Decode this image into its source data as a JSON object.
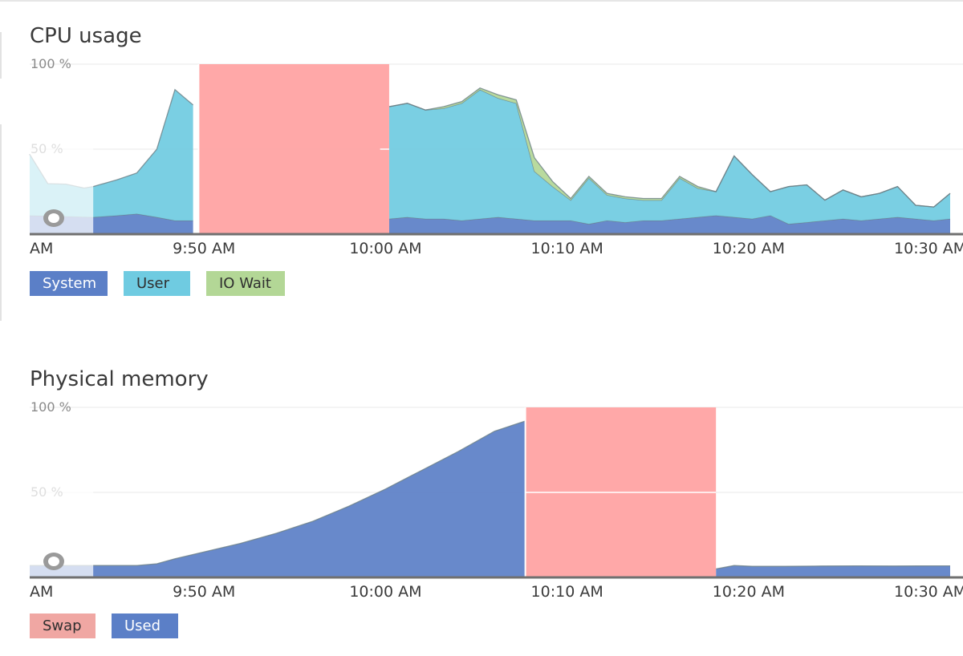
{
  "chart_data": [
    {
      "type": "area",
      "title": "CPU usage",
      "ylim": [
        0,
        100
      ],
      "y_ticks": [
        "100 %",
        "50 %"
      ],
      "y_tick_values": [
        100,
        50
      ],
      "x_ticks": [
        "AM",
        "9:50 AM",
        "10:00 AM",
        "10:10 AM",
        "10:20 AM",
        "10:30 AM"
      ],
      "x_tick_minutes": [
        -3.3,
        0,
        10,
        20,
        30,
        40
      ],
      "x_range_minutes": [
        -9.6,
        41.1
      ],
      "x_start_time": "9:40 AM",
      "stacked": true,
      "gap": {
        "from": -0.3,
        "to": 10.2,
        "color": "#ffa3a3"
      },
      "gap_line": {
        "from": 9.7,
        "to": 10.2
      },
      "selection": {
        "from": -9.6,
        "to": -6.1
      },
      "series": [
        {
          "name": "System",
          "color": "#5b7fc7",
          "x": [
            -9.6,
            -6.1,
            -4.8,
            -3.7,
            -2.6,
            -1.6,
            -0.6,
            0.4,
            1.3,
            2.3,
            3.3,
            4.3,
            5.3,
            6.3,
            7.3,
            8.3,
            9.3,
            10.2,
            11.2,
            12.2,
            13.2,
            14.2,
            15.2,
            16.2,
            17.2,
            18.2,
            19.2,
            20.2,
            21.2,
            22.2,
            23.2,
            24.2,
            25.2,
            26.2,
            27.2,
            28.2,
            29.2,
            30.2,
            31.2,
            32.2,
            33.2,
            34.2,
            35.2,
            36.2,
            37.2,
            38.2,
            39.2,
            40.2,
            41.1
          ],
          "values": [
            11,
            10,
            11,
            12,
            10,
            8,
            8,
            8,
            8,
            9,
            8,
            8,
            9,
            10,
            9,
            8,
            7,
            9,
            10,
            9,
            9,
            8,
            9,
            10,
            9,
            8,
            8,
            8,
            6,
            8,
            7,
            8,
            8,
            9,
            10,
            11,
            10,
            9,
            11,
            6,
            7,
            8,
            9,
            8,
            9,
            10,
            9,
            8,
            9
          ]
        },
        {
          "name": "User",
          "color": "#6fcbe1",
          "x": [
            -9.6,
            -8.6,
            -7.6,
            -6.6,
            -6.1,
            -4.8,
            -3.7,
            -2.6,
            -1.6,
            -0.6,
            0.4,
            1.3,
            2.3,
            3.3,
            4.3,
            5.3,
            6.3,
            7.3,
            8.3,
            9.3,
            10.2,
            11.2,
            12.2,
            13.2,
            14.2,
            15.2,
            16.2,
            17.2,
            18.2,
            19.2,
            20.2,
            21.2,
            22.2,
            23.2,
            24.2,
            25.2,
            26.2,
            27.2,
            28.2,
            29.2,
            30.2,
            31.2,
            32.2,
            33.2,
            34.2,
            35.2,
            36.2,
            37.2,
            38.2,
            39.2,
            40.2,
            41.1
          ],
          "values": [
            36,
            19,
            19,
            17,
            18,
            21,
            24,
            40,
            77,
            68,
            69,
            69,
            69,
            73,
            69,
            74,
            72,
            70,
            67,
            63,
            66,
            67,
            64,
            65,
            69,
            76,
            70,
            68,
            29,
            20,
            12,
            27,
            15,
            14,
            12,
            12,
            24,
            17,
            14,
            36,
            26,
            14,
            22,
            22,
            12,
            17,
            14,
            15,
            18,
            8,
            8,
            15
          ]
        },
        {
          "name": "IO Wait",
          "color": "#b3d796",
          "x": [
            -9.6,
            -8.6,
            -7.6,
            -6.6,
            -6.1,
            -4.8,
            -3.7,
            -2.6,
            -1.6,
            -0.6,
            0.4,
            1.3,
            2.3,
            3.3,
            4.3,
            5.3,
            6.3,
            7.3,
            8.3,
            9.3,
            10.2,
            11.2,
            12.2,
            13.2,
            14.2,
            15.2,
            16.2,
            17.2,
            18.2,
            19.2,
            20.2,
            21.2,
            22.2,
            23.2,
            24.2,
            25.2,
            26.2,
            27.2,
            28.2,
            29.2,
            30.2,
            31.2,
            32.2,
            33.2,
            34.2,
            35.2,
            36.2,
            37.2,
            38.2,
            39.2,
            40.2,
            41.1
          ],
          "values": [
            0,
            0,
            0,
            0,
            0,
            0,
            0,
            0,
            0,
            0,
            0,
            0,
            0,
            0,
            0,
            0,
            0,
            0,
            0,
            0,
            0,
            0,
            0,
            1,
            1,
            1,
            2,
            2,
            8,
            3,
            1,
            1,
            1,
            1,
            1,
            1,
            1,
            1,
            0,
            0,
            0,
            0,
            0,
            0,
            0,
            0,
            0,
            0,
            0,
            0,
            0,
            0
          ]
        }
      ]
    },
    {
      "type": "area",
      "title": "Physical memory",
      "ylim": [
        0,
        100
      ],
      "y_ticks": [
        "100 %",
        "50 %"
      ],
      "y_tick_values": [
        100,
        50
      ],
      "x_ticks": [
        "AM",
        "9:50 AM",
        "10:00 AM",
        "10:10 AM",
        "10:20 AM",
        "10:30 AM"
      ],
      "x_tick_minutes": [
        -3.3,
        0,
        10,
        20,
        30,
        40
      ],
      "x_range_minutes": [
        -9.6,
        41.1
      ],
      "x_start_time": "9:40 AM",
      "stacked": true,
      "gap": {
        "from": 17.7,
        "to": 28.2,
        "color": "#ffa3a3"
      },
      "gap_line": {
        "from": 17.7,
        "to": 28.2
      },
      "selection": {
        "from": -9.6,
        "to": -6.1
      },
      "series": [
        {
          "name": "Swap",
          "color": "#f0a7a3",
          "x": [
            -9.6,
            41.1
          ],
          "values": [
            0,
            0
          ]
        },
        {
          "name": "Used",
          "color": "#5b7fc7",
          "x": [
            -9.6,
            -6.1,
            -4.8,
            -3.7,
            -2.6,
            -1.6,
            0,
            2,
            4,
            6,
            8,
            10,
            12,
            14,
            16,
            17.7,
            28.2,
            29.2,
            30.2,
            32,
            34,
            36,
            38,
            40,
            41.1
          ],
          "values": [
            7,
            7,
            7,
            7,
            8,
            11,
            15,
            20,
            26,
            33,
            42,
            52,
            63,
            74,
            86,
            92,
            5,
            7,
            6.5,
            6.5,
            6.7,
            6.8,
            6.7,
            6.8,
            6.8
          ]
        }
      ]
    }
  ]
}
